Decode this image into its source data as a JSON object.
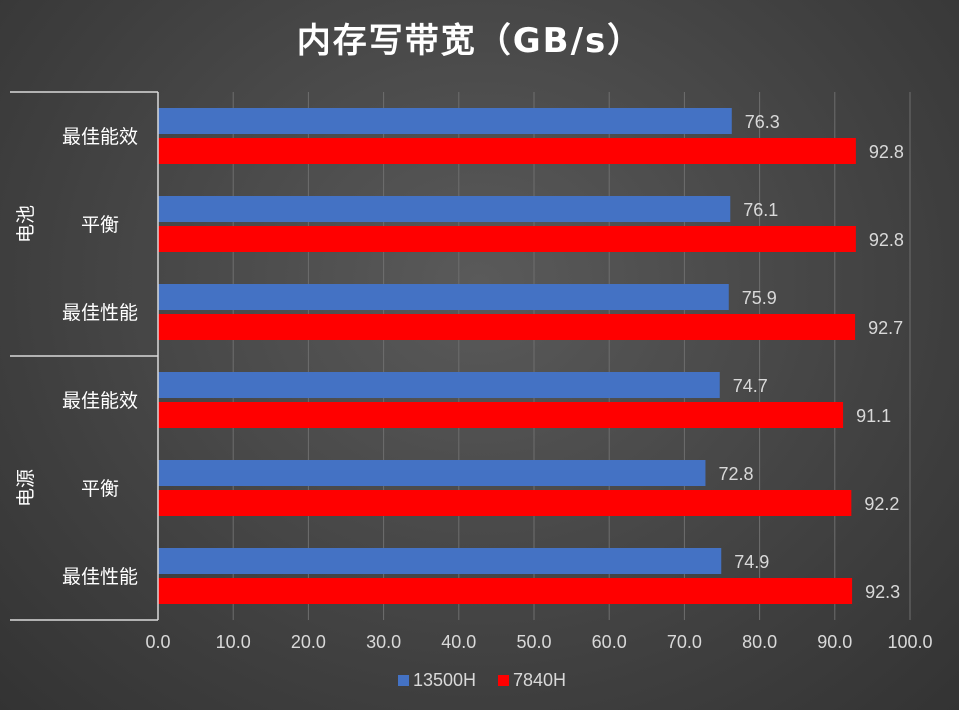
{
  "chart_data": {
    "type": "bar",
    "orientation": "horizontal",
    "title": "内存写带宽（GB/s）",
    "groups": [
      {
        "label": "电池",
        "categories": [
          "最佳能效",
          "平衡",
          "最佳性能"
        ]
      },
      {
        "label": "电源",
        "categories": [
          "最佳能效",
          "平衡",
          "最佳性能"
        ]
      }
    ],
    "series": [
      {
        "name": "13500H",
        "color": "#4472C4",
        "values": [
          76.3,
          76.1,
          75.9,
          74.7,
          72.8,
          74.9
        ]
      },
      {
        "name": "7840H",
        "color": "#FF0000",
        "values": [
          92.8,
          92.8,
          92.7,
          91.1,
          92.2,
          92.3
        ]
      }
    ],
    "xlim": [
      0,
      100
    ],
    "xticks": [
      "0.0",
      "10.0",
      "20.0",
      "30.0",
      "40.0",
      "50.0",
      "60.0",
      "70.0",
      "80.0",
      "90.0",
      "100.0"
    ],
    "grid": true,
    "legend_position": "bottom"
  }
}
